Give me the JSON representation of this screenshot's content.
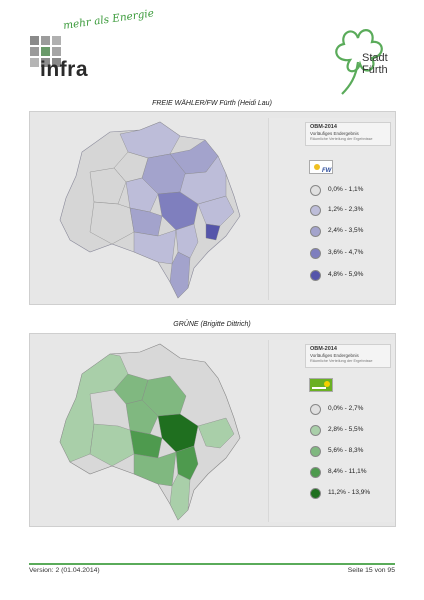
{
  "header": {
    "tagline": "mehr als Energie",
    "infra_logo_text": "infra",
    "city_logo_line1": "Stadt",
    "city_logo_line2": "Fürth"
  },
  "maps": [
    {
      "caption": "FREIE WÄHLER/FW Fürth (Heidi Lau)",
      "legend_title": "OBM-2014",
      "legend_subtitle": "Vorläufiges Endergebnis",
      "legend_note": "Räumliche Verteilung der Ergebnisse",
      "party_logo": "fw-logo",
      "colors": [
        "#d8d8d8",
        "#bdbdd9",
        "#a3a3cc",
        "#7f7fbe",
        "#5555aa"
      ],
      "legend": [
        "0,0% - 1,1%",
        "1,2% - 2,3%",
        "2,4% - 3,5%",
        "3,6% - 4,7%",
        "4,8% - 5,9%"
      ]
    },
    {
      "caption": "GRÜNE (Brigitte Dittrich)",
      "legend_title": "OBM-2014",
      "legend_subtitle": "Vorläufiges Endergebnis",
      "legend_note": "Räumliche Verteilung der Ergebnisse",
      "party_logo": "gruene-logo",
      "colors": [
        "#d9d9d9",
        "#a9cfa9",
        "#80b880",
        "#4e9a4e",
        "#1f6f1f"
      ],
      "legend": [
        "0,0% - 2,7%",
        "2,8% - 5,5%",
        "5,6% - 8,3%",
        "8,4% - 11,1%",
        "11,2% - 13,9%"
      ]
    }
  ],
  "footer": {
    "version": "Version: 2 (01.04.2014)",
    "page": "Seite 15 von 95"
  }
}
